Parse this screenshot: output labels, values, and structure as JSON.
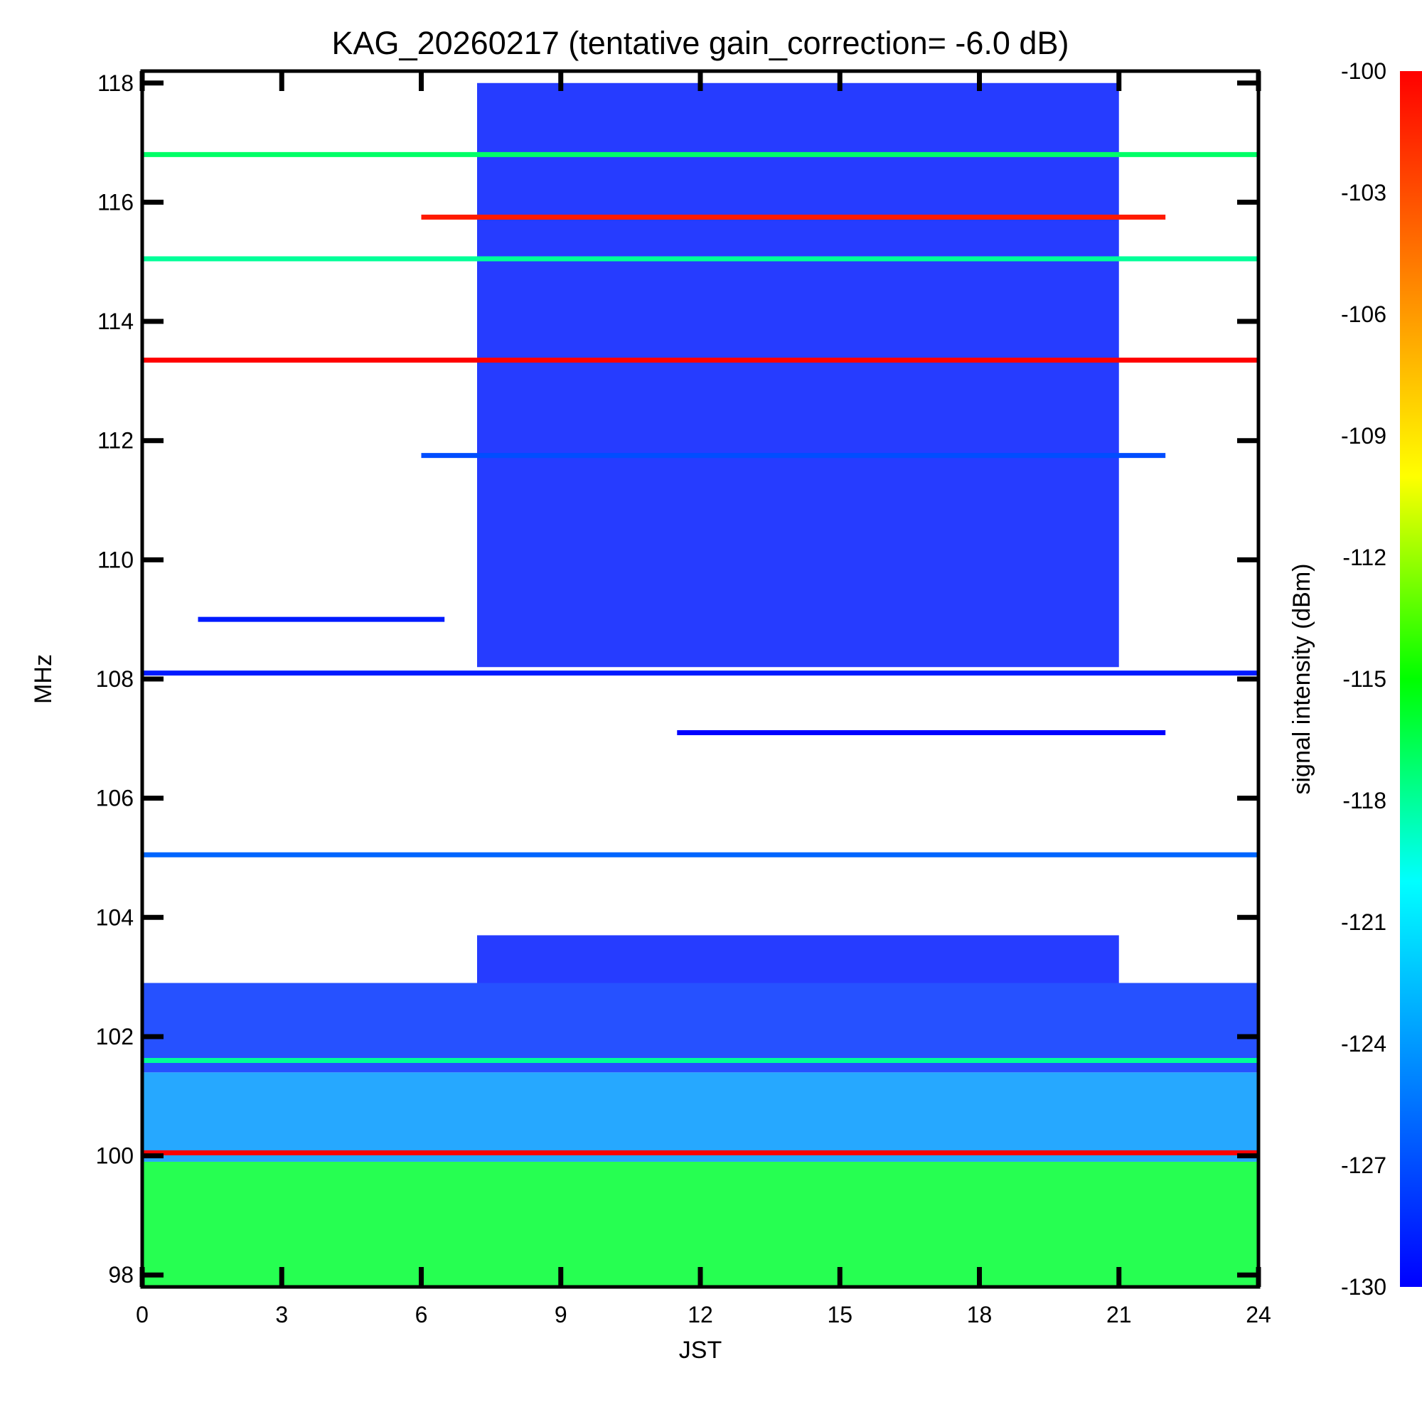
{
  "chart_data": {
    "type": "heatmap",
    "title": "KAG_20260217 (tentative gain_correction= -6.0 dB)",
    "xlabel": "JST",
    "ylabel": "MHz",
    "colorbar_label": "signal intensity (dBm)",
    "xlim": [
      0,
      24
    ],
    "ylim": [
      97.8,
      118.2
    ],
    "x_ticks": [
      0,
      3,
      6,
      9,
      12,
      15,
      18,
      21,
      24
    ],
    "x_tick_labels": [
      "0",
      "3",
      "6",
      "9",
      "12",
      "15",
      "18",
      "21",
      "24"
    ],
    "y_ticks": [
      98,
      100,
      102,
      104,
      106,
      108,
      110,
      112,
      114,
      116,
      118
    ],
    "y_tick_labels": [
      "98",
      "100",
      "102",
      "104",
      "106",
      "108",
      "110",
      "112",
      "114",
      "116",
      "118"
    ],
    "colorbar_range": [
      -130,
      -100
    ],
    "colorbar_ticks": [
      -100,
      -103,
      -106,
      -109,
      -112,
      -115,
      -118,
      -121,
      -124,
      -127,
      -130
    ],
    "colorbar_tick_labels": [
      "-100",
      "-103",
      "-106",
      "-109",
      "-112",
      "-115",
      "-118",
      "-121",
      "-124",
      "-127",
      "-130"
    ],
    "colormap": [
      "#0000ff",
      "#0080ff",
      "#00ffff",
      "#00ff00",
      "#ffff00",
      "#ff8000",
      "#ff0000"
    ],
    "continuous_bands": [
      {
        "freq": 116.8,
        "x_start": 0,
        "x_end": 24,
        "dbm": -117
      },
      {
        "freq": 115.05,
        "x_start": 0,
        "x_end": 24,
        "dbm": -118
      },
      {
        "freq": 113.35,
        "x_start": 0,
        "x_end": 24,
        "dbm": -100
      },
      {
        "freq": 115.75,
        "x_start": 6,
        "x_end": 22,
        "dbm": -101
      },
      {
        "freq": 111.75,
        "x_start": 6,
        "x_end": 22,
        "dbm": -127
      },
      {
        "freq": 108.1,
        "x_start": 0,
        "x_end": 24,
        "dbm": -129
      },
      {
        "freq": 109.0,
        "x_start": 1.2,
        "x_end": 6.5,
        "dbm": -129
      },
      {
        "freq": 105.05,
        "x_start": 0,
        "x_end": 24,
        "dbm": -126
      },
      {
        "freq": 107.1,
        "x_start": 11.5,
        "x_end": 22,
        "dbm": -130
      },
      {
        "freq": 101.6,
        "x_start": 0,
        "x_end": 24,
        "dbm": -118
      },
      {
        "freq": 100.05,
        "x_start": 0,
        "x_end": 24,
        "dbm": -100
      }
    ],
    "noise_regions": [
      {
        "x_start": 0,
        "x_end": 24,
        "f_start": 97.8,
        "f_end": 99.9,
        "dbm": -116
      },
      {
        "x_start": 0,
        "x_end": 24,
        "f_start": 99.9,
        "f_end": 101.4,
        "dbm": -124
      },
      {
        "x_start": 0,
        "x_end": 24,
        "f_start": 101.4,
        "f_end": 102.9,
        "dbm": -128
      },
      {
        "x_start": 7.2,
        "x_end": 21,
        "f_start": 102.9,
        "f_end": 103.7,
        "dbm": -129
      },
      {
        "x_start": 7.2,
        "x_end": 21,
        "f_start": 108.2,
        "f_end": 118.0,
        "dbm": -129
      }
    ]
  }
}
